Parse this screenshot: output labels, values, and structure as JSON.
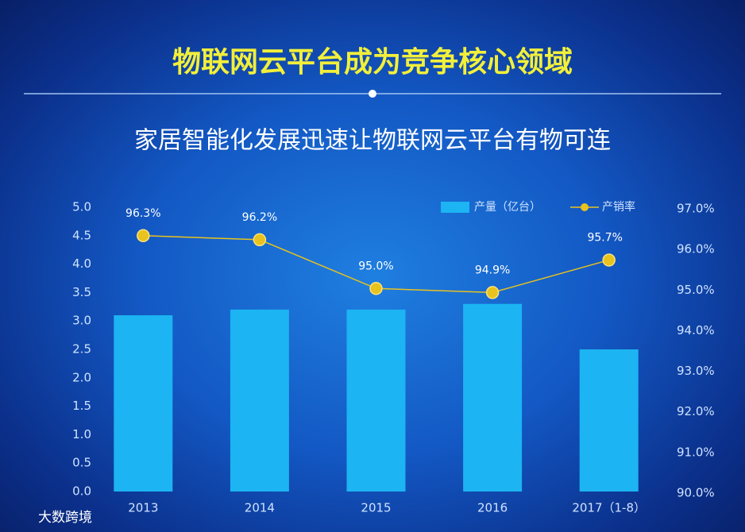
{
  "chart_data": {
    "type": "bar",
    "title": "物联网云平台成为竞争核心领域",
    "subtitle": "家居智能化发展迅速让物联网云平台有物可连",
    "source": "大数跨境",
    "categories": [
      "2013",
      "2014",
      "2015",
      "2016",
      "2017（1-8）"
    ],
    "series": [
      {
        "name": "产量（亿台）",
        "type": "bar",
        "color": "#1cb4f2",
        "values": [
          3.1,
          3.2,
          3.2,
          3.3,
          2.5
        ]
      },
      {
        "name": "产销率",
        "type": "line",
        "axis": "y2",
        "color": "#e8c21e",
        "values": [
          96.3,
          96.2,
          95.0,
          94.9,
          95.7
        ],
        "value_labels": [
          "96.3%",
          "96.2%",
          "95.0%",
          "94.9%",
          "95.7%"
        ]
      }
    ],
    "ylim": [
      0,
      5
    ],
    "yticks": [
      {
        "value": 0,
        "label": "0.0"
      },
      {
        "value": 0.5,
        "label": "0.5"
      },
      {
        "value": 1,
        "label": "1.0"
      },
      {
        "value": 1.5,
        "label": "1.5"
      },
      {
        "value": 2,
        "label": "2.0"
      },
      {
        "value": 2.5,
        "label": "2.5"
      },
      {
        "value": 3,
        "label": "3.0"
      },
      {
        "value": 3.5,
        "label": "3.5"
      },
      {
        "value": 4,
        "label": "4.0"
      },
      {
        "value": 4.5,
        "label": "4.5"
      },
      {
        "value": 5,
        "label": "5.0"
      }
    ],
    "y2lim": [
      90,
      97
    ],
    "y2ticks": [
      {
        "value": 90,
        "label": "90.0%"
      },
      {
        "value": 91,
        "label": "91.0%"
      },
      {
        "value": 92,
        "label": "92.0%"
      },
      {
        "value": 93,
        "label": "93.0%"
      },
      {
        "value": 94,
        "label": "94.0%"
      },
      {
        "value": 95,
        "label": "95.0%"
      },
      {
        "value": 96,
        "label": "96.0%"
      },
      {
        "value": 97,
        "label": "97.0%"
      }
    ],
    "legend": "top-right"
  }
}
